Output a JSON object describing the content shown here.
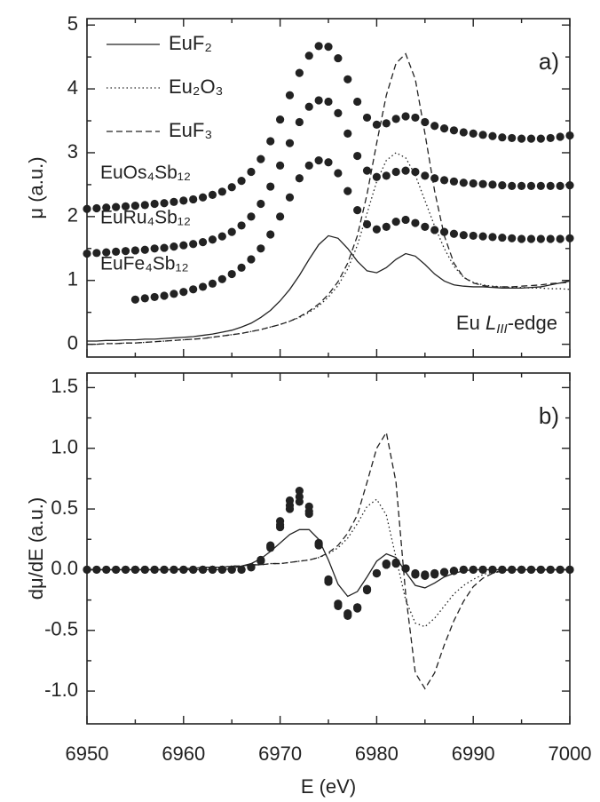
{
  "chart_data": [
    {
      "type": "line",
      "panel_label": "a)",
      "ylabel": "μ (a.u.)",
      "annotation": [
        "Eu ",
        "L",
        "III",
        "-edge"
      ],
      "xlim": [
        6950,
        7000
      ],
      "ylim": [
        -0.2,
        5.1
      ],
      "yticks": [
        0,
        1,
        2,
        3,
        4,
        5
      ],
      "x": [
        6950,
        6951,
        6952,
        6953,
        6954,
        6955,
        6956,
        6957,
        6958,
        6959,
        6960,
        6961,
        6962,
        6963,
        6964,
        6965,
        6966,
        6967,
        6968,
        6969,
        6970,
        6971,
        6972,
        6973,
        6974,
        6975,
        6976,
        6977,
        6978,
        6979,
        6980,
        6981,
        6982,
        6983,
        6984,
        6985,
        6986,
        6987,
        6988,
        6989,
        6990,
        6991,
        6992,
        6993,
        6994,
        6995,
        6996,
        6997,
        6998,
        6999,
        7000
      ],
      "series": [
        {
          "name": "EuF₂",
          "style": "solid",
          "color": "#222222",
          "values": [
            0.05,
            0.05,
            0.06,
            0.06,
            0.07,
            0.07,
            0.08,
            0.08,
            0.09,
            0.1,
            0.11,
            0.12,
            0.14,
            0.16,
            0.19,
            0.22,
            0.27,
            0.33,
            0.42,
            0.53,
            0.68,
            0.86,
            1.08,
            1.33,
            1.56,
            1.7,
            1.66,
            1.5,
            1.3,
            1.15,
            1.12,
            1.2,
            1.33,
            1.42,
            1.38,
            1.25,
            1.1,
            0.99,
            0.93,
            0.91,
            0.9,
            0.9,
            0.89,
            0.88,
            0.88,
            0.88,
            0.89,
            0.9,
            0.93,
            0.96,
            0.99
          ]
        },
        {
          "name": "Eu₂O₃",
          "style": "dotted",
          "color": "#222222",
          "values": [
            0.0,
            0.0,
            0.01,
            0.01,
            0.02,
            0.02,
            0.03,
            0.04,
            0.05,
            0.06,
            0.07,
            0.08,
            0.09,
            0.11,
            0.13,
            0.15,
            0.17,
            0.2,
            0.23,
            0.27,
            0.31,
            0.36,
            0.42,
            0.5,
            0.6,
            0.74,
            0.92,
            1.18,
            1.55,
            2.05,
            2.55,
            2.88,
            3.0,
            2.92,
            2.65,
            2.25,
            1.85,
            1.5,
            1.22,
            1.05,
            0.97,
            0.93,
            0.91,
            0.9,
            0.89,
            0.89,
            0.88,
            0.88,
            0.87,
            0.87,
            0.86
          ]
        },
        {
          "name": "EuF₃",
          "style": "dashed",
          "color": "#222222",
          "values": [
            0.0,
            0.0,
            0.01,
            0.01,
            0.02,
            0.02,
            0.03,
            0.04,
            0.05,
            0.06,
            0.07,
            0.08,
            0.09,
            0.11,
            0.13,
            0.15,
            0.17,
            0.2,
            0.23,
            0.27,
            0.31,
            0.36,
            0.43,
            0.52,
            0.63,
            0.78,
            0.98,
            1.27,
            1.7,
            2.35,
            3.15,
            3.9,
            4.4,
            4.55,
            4.15,
            3.3,
            2.4,
            1.7,
            1.27,
            1.05,
            0.96,
            0.92,
            0.9,
            0.9,
            0.9,
            0.91,
            0.92,
            0.93,
            0.95,
            0.96,
            0.97
          ]
        },
        {
          "name": "EuOs₄Sb₁₂",
          "style": "markers",
          "color": "#222222",
          "values": [
            2.12,
            2.13,
            2.14,
            2.15,
            2.16,
            2.17,
            2.18,
            2.2,
            2.21,
            2.23,
            2.25,
            2.27,
            2.3,
            2.34,
            2.39,
            2.46,
            2.56,
            2.7,
            2.9,
            3.18,
            3.52,
            3.9,
            4.25,
            4.52,
            4.67,
            4.66,
            4.48,
            4.15,
            3.8,
            3.55,
            3.44,
            3.46,
            3.53,
            3.57,
            3.55,
            3.48,
            3.42,
            3.38,
            3.35,
            3.32,
            3.3,
            3.28,
            3.26,
            3.24,
            3.23,
            3.22,
            3.22,
            3.22,
            3.23,
            3.25,
            3.27
          ]
        },
        {
          "name": "EuRu₄Sb₁₂",
          "style": "markers",
          "color": "#222222",
          "values": [
            1.42,
            1.43,
            1.44,
            1.45,
            1.46,
            1.47,
            1.48,
            1.5,
            1.51,
            1.53,
            1.55,
            1.57,
            1.6,
            1.64,
            1.69,
            1.76,
            1.86,
            2.0,
            2.2,
            2.47,
            2.8,
            3.15,
            3.48,
            3.72,
            3.82,
            3.8,
            3.62,
            3.3,
            2.95,
            2.72,
            2.62,
            2.64,
            2.7,
            2.72,
            2.7,
            2.64,
            2.6,
            2.57,
            2.55,
            2.53,
            2.52,
            2.51,
            2.5,
            2.49,
            2.48,
            2.48,
            2.48,
            2.48,
            2.48,
            2.48,
            2.49
          ]
        },
        {
          "name": "EuFe₄Sb₁₂",
          "style": "markers",
          "color": "#222222",
          "values": [
            null,
            null,
            null,
            null,
            null,
            0.7,
            0.72,
            0.74,
            0.76,
            0.79,
            0.82,
            0.86,
            0.9,
            0.95,
            1.02,
            1.1,
            1.2,
            1.33,
            1.5,
            1.72,
            2.0,
            2.3,
            2.6,
            2.8,
            2.88,
            2.85,
            2.68,
            2.4,
            2.1,
            1.88,
            1.8,
            1.84,
            1.92,
            1.95,
            1.9,
            1.84,
            1.79,
            1.76,
            1.73,
            1.71,
            1.7,
            1.69,
            1.68,
            1.67,
            1.66,
            1.65,
            1.65,
            1.65,
            1.65,
            1.65,
            1.66
          ]
        }
      ]
    },
    {
      "type": "line",
      "panel_label": "b)",
      "ylabel": "dμ/dE (a.u.)",
      "xlabel": "E (eV)",
      "xlim": [
        6950,
        7000
      ],
      "xticks": [
        6950,
        6960,
        6970,
        6980,
        6990,
        7000
      ],
      "ylim": [
        -1.27,
        1.62
      ],
      "yticks": [
        {
          "value": -1,
          "label": "-1.0"
        },
        -0.5,
        {
          "value": 0,
          "label": "0.0"
        },
        0.5,
        {
          "value": 1,
          "label": "1.0"
        },
        1.5
      ],
      "x": [
        6950,
        6951,
        6952,
        6953,
        6954,
        6955,
        6956,
        6957,
        6958,
        6959,
        6960,
        6961,
        6962,
        6963,
        6964,
        6965,
        6966,
        6967,
        6968,
        6969,
        6970,
        6971,
        6972,
        6973,
        6974,
        6975,
        6976,
        6977,
        6978,
        6979,
        6980,
        6981,
        6982,
        6983,
        6984,
        6985,
        6986,
        6987,
        6988,
        6989,
        6990,
        6991,
        6992,
        6993,
        6994,
        6995,
        6996,
        6997,
        6998,
        6999,
        7000
      ],
      "series": [
        {
          "style": "solid",
          "color": "#222222",
          "values": [
            0,
            0,
            0,
            0,
            0,
            0,
            0,
            0,
            0,
            0,
            0,
            0,
            0,
            0,
            0,
            0.01,
            0.03,
            0.05,
            0.09,
            0.15,
            0.22,
            0.29,
            0.33,
            0.33,
            0.25,
            0.08,
            -0.12,
            -0.22,
            -0.18,
            -0.06,
            0.07,
            0.13,
            0.1,
            -0.02,
            -0.13,
            -0.15,
            -0.11,
            -0.06,
            -0.03,
            -0.01,
            0,
            0,
            0,
            0,
            0,
            0,
            0,
            0,
            0,
            0,
            0
          ]
        },
        {
          "style": "dotted",
          "color": "#222222",
          "values": [
            0,
            0,
            0,
            0,
            0,
            0,
            0,
            0,
            0,
            0,
            0.01,
            0.01,
            0.02,
            0.02,
            0.02,
            0.03,
            0.03,
            0.04,
            0.04,
            0.05,
            0.05,
            0.06,
            0.07,
            0.08,
            0.1,
            0.13,
            0.18,
            0.26,
            0.38,
            0.52,
            0.58,
            0.45,
            0.1,
            -0.25,
            -0.44,
            -0.47,
            -0.4,
            -0.3,
            -0.2,
            -0.13,
            -0.08,
            -0.04,
            -0.02,
            -0.01,
            0,
            0,
            0,
            0,
            0,
            0,
            0
          ]
        },
        {
          "style": "dashed",
          "color": "#222222",
          "values": [
            0,
            0,
            0,
            0,
            0,
            0,
            0,
            0,
            0,
            0,
            0.01,
            0.01,
            0.02,
            0.02,
            0.02,
            0.03,
            0.03,
            0.04,
            0.04,
            0.05,
            0.05,
            0.06,
            0.07,
            0.08,
            0.1,
            0.14,
            0.2,
            0.3,
            0.45,
            0.72,
            1.0,
            1.13,
            0.72,
            -0.2,
            -0.85,
            -0.98,
            -0.85,
            -0.62,
            -0.42,
            -0.26,
            -0.14,
            -0.07,
            -0.03,
            -0.01,
            0,
            0,
            0,
            0,
            0,
            0,
            0
          ]
        },
        {
          "style": "markers",
          "color": "#222222",
          "values": [
            0,
            0,
            0,
            0,
            0,
            0,
            0,
            0,
            0,
            0,
            0,
            0,
            0,
            0,
            0,
            0,
            0,
            0.02,
            0.08,
            0.2,
            0.4,
            0.57,
            0.65,
            0.52,
            0.22,
            -0.1,
            -0.3,
            -0.38,
            -0.32,
            -0.17,
            -0.03,
            0.05,
            0.06,
            0.01,
            -0.04,
            -0.05,
            -0.04,
            -0.02,
            -0.01,
            0,
            0,
            0,
            0,
            0,
            0,
            0,
            0,
            0,
            0,
            0,
            0
          ]
        },
        {
          "style": "markers",
          "color": "#222222",
          "values": [
            0,
            0,
            0,
            0,
            0,
            0,
            0,
            0,
            0,
            0,
            0,
            0,
            0,
            0,
            0,
            0,
            0,
            0.02,
            0.07,
            0.18,
            0.35,
            0.5,
            0.56,
            0.46,
            0.2,
            -0.08,
            -0.28,
            -0.36,
            -0.31,
            -0.16,
            -0.03,
            0.04,
            0.05,
            0.01,
            -0.03,
            -0.04,
            -0.03,
            -0.02,
            -0.01,
            0,
            0,
            0,
            0,
            0,
            0,
            0,
            0,
            0,
            0,
            0,
            0
          ]
        },
        {
          "style": "markers",
          "color": "#222222",
          "values": [
            null,
            null,
            null,
            null,
            null,
            0,
            0,
            0,
            0,
            0,
            0,
            0,
            0,
            0,
            0,
            0,
            0,
            0.02,
            0.08,
            0.19,
            0.37,
            0.53,
            0.6,
            0.48,
            0.21,
            -0.09,
            -0.29,
            -0.37,
            -0.31,
            -0.16,
            -0.03,
            0.05,
            0.05,
            0.01,
            -0.04,
            -0.05,
            -0.03,
            -0.02,
            -0.01,
            0,
            0,
            0,
            0,
            0,
            0,
            0,
            0,
            0,
            0,
            0,
            0
          ]
        }
      ]
    }
  ]
}
